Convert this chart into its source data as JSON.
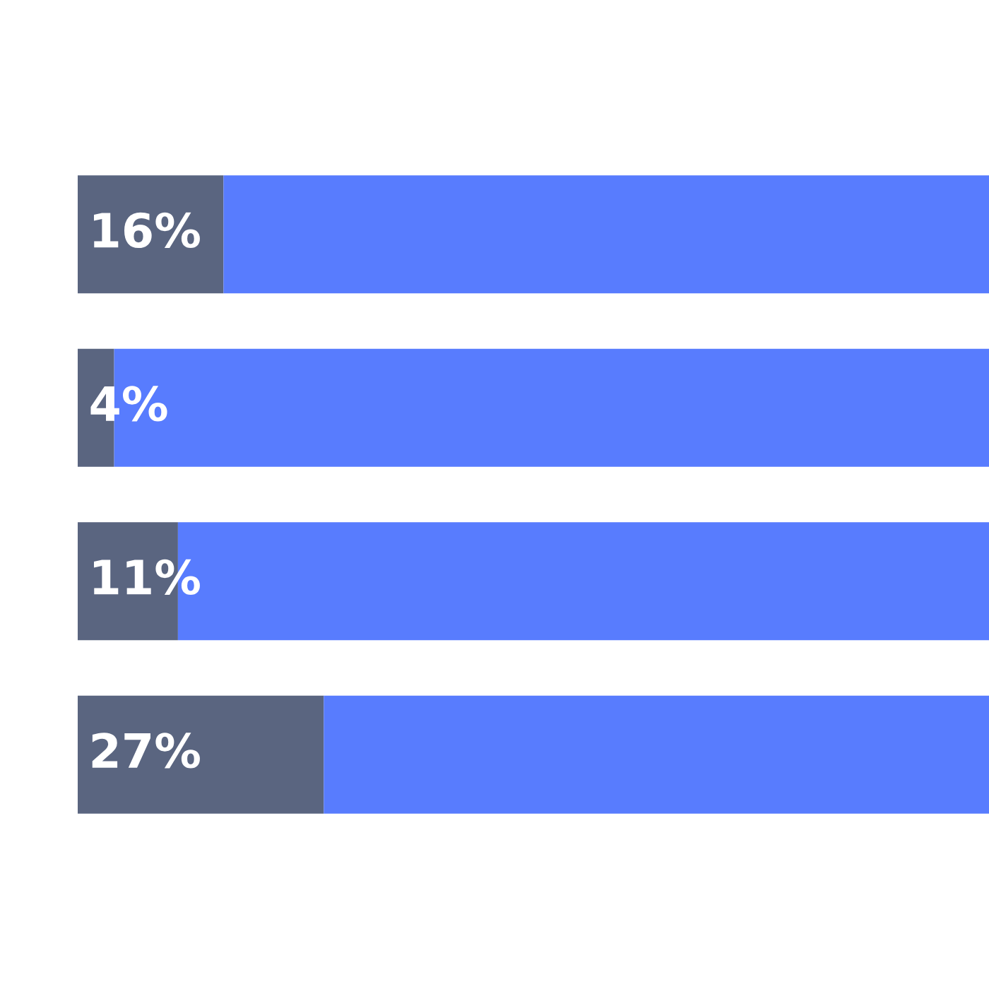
{
  "chart_data": {
    "type": "bar",
    "orientation": "horizontal",
    "stacked": true,
    "categories": [
      null,
      null,
      null,
      null
    ],
    "xlim": [
      0,
      100
    ],
    "tick_labels": false,
    "grid": false,
    "legend": false,
    "series": [
      {
        "color": "#5a6580",
        "values": [
          16,
          4,
          11,
          27
        ],
        "value_labels": [
          "16%",
          "4%",
          "11%",
          "27%"
        ]
      },
      {
        "color": "#587cfe",
        "values": [
          84,
          96,
          89,
          73
        ]
      }
    ]
  }
}
